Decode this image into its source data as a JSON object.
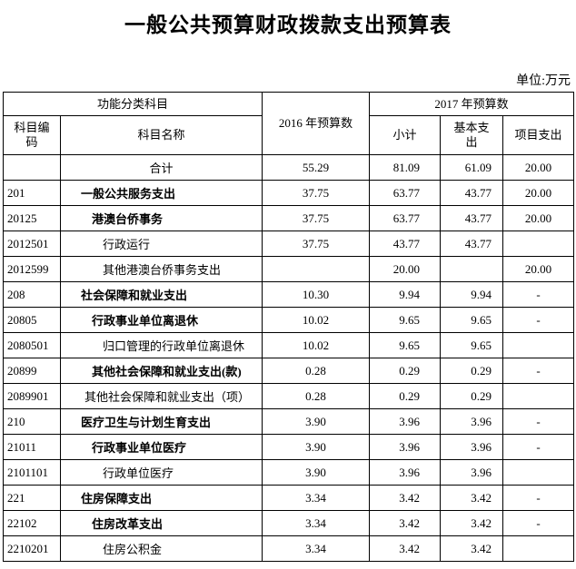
{
  "header": {
    "title": "一般公共预算财政拨款支出预算表",
    "unit": "单位:万元"
  },
  "table": {
    "head": {
      "function_class": "功能分类科目",
      "code": "科目编码",
      "name": "科目名称",
      "y2016": "2016 年预算数",
      "y2017": "2017 年预算数",
      "subtotal": "小计",
      "basic": "基本支出",
      "project": "项目支出"
    },
    "rows": [
      {
        "name": "合计",
        "y2016": "55.29",
        "subtotal": "81.09",
        "basic": "61.09",
        "project": "20.00"
      },
      {
        "code": "201",
        "name": "一般公共服务支出",
        "y2016": "37.75",
        "subtotal": "63.77",
        "basic": "43.77",
        "project": "20.00"
      },
      {
        "code": "20125",
        "name": "港澳台侨事务",
        "y2016": "37.75",
        "subtotal": "63.77",
        "basic": "43.77",
        "project": "20.00"
      },
      {
        "code": "2012501",
        "name": "行政运行",
        "y2016": "37.75",
        "subtotal": "43.77",
        "basic": "43.77"
      },
      {
        "code": "2012599",
        "name": "其他港澳台侨事务支出",
        "subtotal": "20.00",
        "project": "20.00"
      },
      {
        "code": "208",
        "name": "社会保障和就业支出",
        "y2016": "10.30",
        "subtotal": "9.94",
        "basic": "9.94",
        "project": "-"
      },
      {
        "code": "20805",
        "name": "行政事业单位离退休",
        "y2016": "10.02",
        "subtotal": "9.65",
        "basic": "9.65",
        "project": "-"
      },
      {
        "code": "2080501",
        "name": "归口管理的行政单位离退休",
        "y2016": "10.02",
        "subtotal": "9.65",
        "basic": "9.65"
      },
      {
        "code": "20899",
        "name": "其他社会保障和就业支出(款)",
        "y2016": "0.28",
        "subtotal": "0.29",
        "basic": "0.29",
        "project": "-"
      },
      {
        "code": "2089901",
        "name": "其他社会保障和就业支出（项）",
        "y2016": "0.28",
        "subtotal": "0.29",
        "basic": "0.29"
      },
      {
        "code": "210",
        "name": "医疗卫生与计划生育支出",
        "y2016": "3.90",
        "subtotal": "3.96",
        "basic": "3.96",
        "project": "-"
      },
      {
        "code": "21011",
        "name": "行政事业单位医疗",
        "y2016": "3.90",
        "subtotal": "3.96",
        "basic": "3.96",
        "project": "-"
      },
      {
        "code": "2101101",
        "name": "行政单位医疗",
        "y2016": "3.90",
        "subtotal": "3.96",
        "basic": "3.96"
      },
      {
        "code": "221",
        "name": "住房保障支出",
        "y2016": "3.34",
        "subtotal": "3.42",
        "basic": "3.42",
        "project": "-"
      },
      {
        "code": "22102",
        "name": "住房改革支出",
        "y2016": "3.34",
        "subtotal": "3.42",
        "basic": "3.42",
        "project": "-"
      },
      {
        "code": "2210201",
        "name": "住房公积金",
        "y2016": "3.34",
        "subtotal": "3.42",
        "basic": "3.42"
      }
    ]
  }
}
